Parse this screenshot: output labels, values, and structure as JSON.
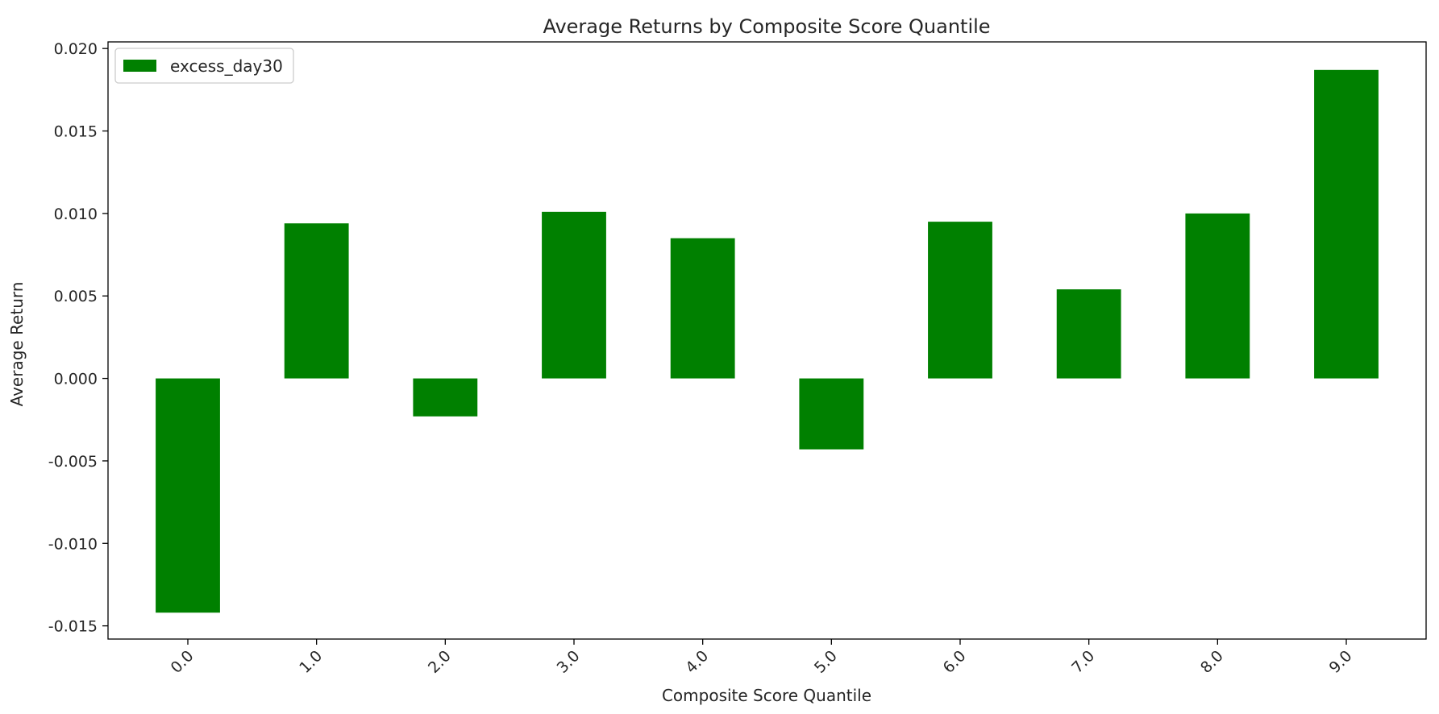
{
  "chart_data": {
    "type": "bar",
    "title": "Average Returns by Composite Score Quantile",
    "xlabel": "Composite Score Quantile",
    "ylabel": "Average Return",
    "categories": [
      "0.0",
      "1.0",
      "2.0",
      "3.0",
      "4.0",
      "5.0",
      "6.0",
      "7.0",
      "8.0",
      "9.0"
    ],
    "series": [
      {
        "name": "excess_day30",
        "color": "#008000",
        "values": [
          -0.0142,
          0.0094,
          -0.0023,
          0.0101,
          0.0085,
          -0.0043,
          0.0095,
          0.0054,
          0.01,
          0.0187
        ]
      }
    ],
    "ylim": [
      -0.0158,
      0.0204
    ],
    "yticks": [
      "0.020",
      "0.015",
      "0.010",
      "0.005",
      "0.000",
      "-0.005",
      "-0.010",
      "-0.015"
    ],
    "ytick_values": [
      0.02,
      0.015,
      0.01,
      0.005,
      0.0,
      -0.005,
      -0.01,
      -0.015
    ],
    "xtick_rotation": 45,
    "legend_position": "top-left",
    "grid": false
  }
}
